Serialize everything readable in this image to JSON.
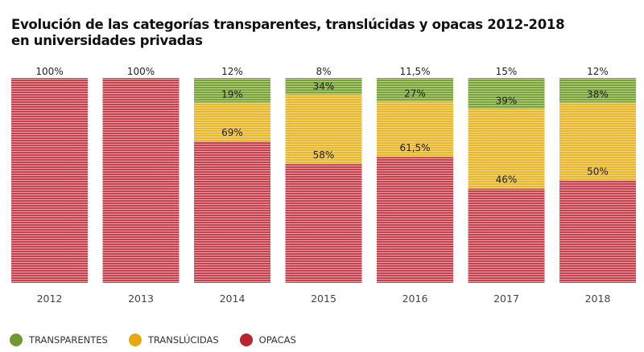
{
  "chart_data": {
    "type": "bar",
    "stacked": true,
    "title": "Evolución de las categorías transparentes, translúcidas y opacas 2012-2018 en universidades privadas",
    "xlabel": "",
    "ylabel": "",
    "ylim": [
      0,
      100
    ],
    "grid": false,
    "legend_position": "bottom-left",
    "categories": [
      "2012",
      "2013",
      "2014",
      "2015",
      "2016",
      "2017",
      "2018"
    ],
    "series": [
      {
        "name": "TRANSPARENTES",
        "color": "#6f9a2e",
        "values": [
          0,
          0,
          12,
          8,
          11.5,
          15,
          12
        ]
      },
      {
        "name": "TRANSLÚCIDAS",
        "color": "#e6b420",
        "values": [
          0,
          0,
          19,
          34,
          27,
          39,
          38
        ]
      },
      {
        "name": "OPACAS",
        "color": "#c22f3c",
        "values": [
          100,
          100,
          69,
          58,
          61.5,
          46,
          50
        ]
      }
    ],
    "data_labels": [
      [
        "100%"
      ],
      [
        "100%"
      ],
      [
        "12%",
        "19%",
        "69%"
      ],
      [
        "8%",
        "34%",
        "58%"
      ],
      [
        "11,5%",
        "27%",
        "61,5%"
      ],
      [
        "15%",
        "39%",
        "46%"
      ],
      [
        "12%",
        "38%",
        "50%"
      ]
    ]
  },
  "legend": [
    {
      "label": "TRANSPARENTES",
      "color": "#6f9a2e"
    },
    {
      "label": "TRANSLÚCIDAS",
      "color": "#e6b420"
    },
    {
      "label": "OPACAS",
      "color": "#c22f3c"
    }
  ]
}
